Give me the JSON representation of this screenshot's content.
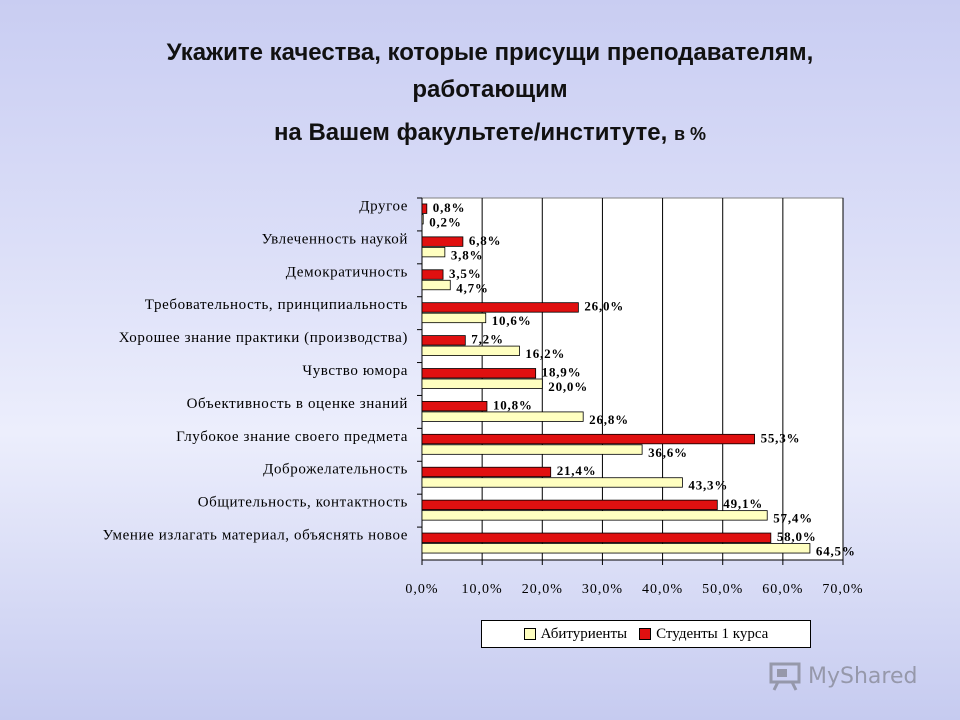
{
  "title": {
    "line1": "Укажите качества, которые присущи преподавателям,",
    "line2": "работающим",
    "line3": "на Вашем факультете/институте,",
    "unit": "в %"
  },
  "chart_data": {
    "type": "bar",
    "orientation": "horizontal",
    "categories": [
      "Другое",
      "Увлеченность наукой",
      "Демократичность",
      "Требовательность, принципиальность",
      "Хорошее знание практики (производства)",
      "Чувство юмора",
      "Объективность в оценке знаний",
      "Глубокое знание своего предмета",
      "Доброжелательность",
      "Общительность, контактность",
      "Умение излагать материал, объяснять новое"
    ],
    "series": [
      {
        "name": "Студенты 1 курса",
        "color": "#e01010",
        "values": [
          0.8,
          6.8,
          3.5,
          26.0,
          7.2,
          18.9,
          10.8,
          55.3,
          21.4,
          49.1,
          58.0
        ],
        "labels": [
          "0,8%",
          "6,8%",
          "3,5%",
          "26,0%",
          "7,2%",
          "18,9%",
          "10,8%",
          "55,3%",
          "21,4%",
          "49,1%",
          "58,0%"
        ]
      },
      {
        "name": "Абитуриенты",
        "color": "#ffffc0",
        "values": [
          0.2,
          3.8,
          4.7,
          10.6,
          16.2,
          20.0,
          26.8,
          36.6,
          43.3,
          57.4,
          64.5
        ],
        "labels": [
          "0,2%",
          "3,8%",
          "4,7%",
          "10,6%",
          "16,2%",
          "20,0%",
          "26,8%",
          "36,6%",
          "43,3%",
          "57,4%",
          "64,5%"
        ]
      }
    ],
    "xlim": [
      0,
      70
    ],
    "xticks": [
      "0,0%",
      "10,0%",
      "20,0%",
      "30,0%",
      "40,0%",
      "50,0%",
      "60,0%",
      "70,0%"
    ],
    "grid": true,
    "legend": {
      "position": "bottom",
      "items": [
        "Абитуриенты",
        "Студенты 1 курса"
      ]
    }
  },
  "watermark": "MyShared"
}
